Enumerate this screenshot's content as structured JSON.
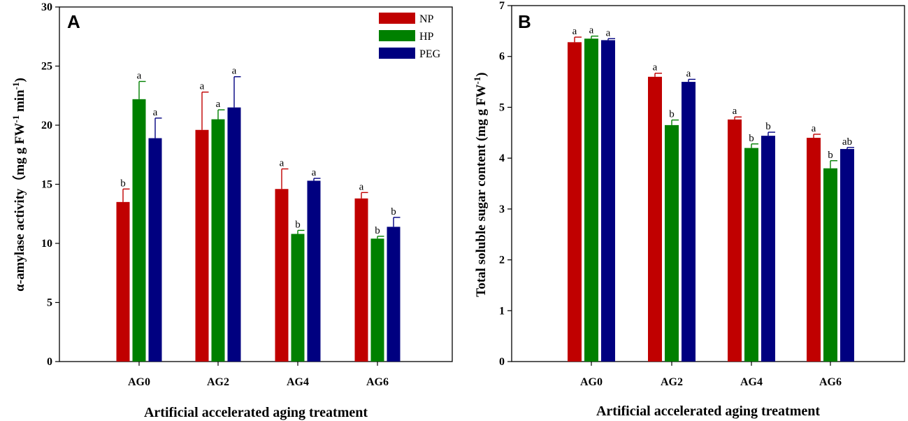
{
  "chart_data": [
    {
      "panel": "A",
      "type": "bar",
      "title": "",
      "xlabel": "Artificial accelerated aging treatment",
      "ylabel_main": "α-amylase activity（mg g FW",
      "ylabel_sup1": "-1",
      "ylabel_mid": " min",
      "ylabel_sup2": "-1",
      "ylabel_end": ")",
      "ylim": [
        0,
        30
      ],
      "yticks": [
        "0",
        "5",
        "10",
        "15",
        "20",
        "25",
        "30"
      ],
      "categories": [
        "AG0",
        "AG2",
        "AG4",
        "AG6"
      ],
      "legend_position": "top-right",
      "series": [
        {
          "name": "NP",
          "color": "#c00000",
          "values": [
            13.5,
            19.6,
            14.6,
            13.8
          ],
          "errors": [
            1.1,
            3.2,
            1.7,
            0.5
          ],
          "letters": [
            "b",
            "a",
            "a",
            "a"
          ]
        },
        {
          "name": "HP",
          "color": "#008000",
          "values": [
            22.2,
            20.5,
            10.8,
            10.4
          ],
          "errors": [
            1.5,
            0.8,
            0.3,
            0.2
          ],
          "letters": [
            "a",
            "a",
            "b",
            "b"
          ]
        },
        {
          "name": "PEG",
          "color": "#000080",
          "values": [
            18.9,
            21.5,
            15.3,
            11.4
          ],
          "errors": [
            1.7,
            2.6,
            0.2,
            0.8
          ],
          "letters": [
            "a",
            "a",
            "a",
            "b"
          ]
        }
      ]
    },
    {
      "panel": "B",
      "type": "bar",
      "title": "",
      "xlabel": "Artificial accelerated aging treatment",
      "ylabel_main": "Total soluble sugar content (mg g FW",
      "ylabel_sup1": "-1",
      "ylabel_end": ")",
      "ylim": [
        0,
        7
      ],
      "yticks": [
        "0",
        "1",
        "2",
        "3",
        "4",
        "5",
        "6",
        "7"
      ],
      "categories": [
        "AG0",
        "AG2",
        "AG4",
        "AG6"
      ],
      "series": [
        {
          "name": "NP",
          "color": "#c00000",
          "values": [
            6.28,
            5.6,
            4.76,
            4.4
          ],
          "errors": [
            0.1,
            0.07,
            0.05,
            0.07
          ],
          "letters": [
            "a",
            "a",
            "a",
            "a"
          ]
        },
        {
          "name": "HP",
          "color": "#008000",
          "values": [
            6.35,
            4.65,
            4.2,
            3.8
          ],
          "errors": [
            0.05,
            0.1,
            0.08,
            0.15
          ],
          "letters": [
            "a",
            "b",
            "b",
            "b"
          ]
        },
        {
          "name": "PEG",
          "color": "#000080",
          "values": [
            6.32,
            5.5,
            4.44,
            4.18
          ],
          "errors": [
            0.03,
            0.05,
            0.07,
            0.03
          ],
          "letters": [
            "a",
            "a",
            "b",
            "ab"
          ]
        }
      ]
    }
  ]
}
